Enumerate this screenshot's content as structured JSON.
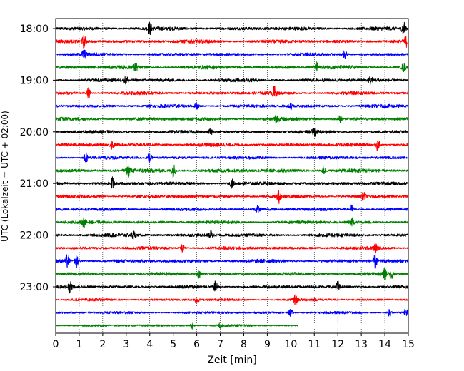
{
  "chart_data": {
    "type": "line",
    "title": "",
    "xlabel": "Zeit  [min]",
    "ylabel": "UTC (Lokalzeit = UTC + 02:00)",
    "xlim": [
      0,
      15
    ],
    "x_ticks": [
      "0",
      "1",
      "2",
      "3",
      "4",
      "5",
      "6",
      "7",
      "8",
      "9",
      "10",
      "11",
      "12",
      "13",
      "14",
      "15"
    ],
    "y_ticks": [
      "18:00",
      "19:00",
      "20:00",
      "21:00",
      "22:00",
      "23:00"
    ],
    "y_tick_values": [
      0,
      4,
      8,
      12,
      16,
      20
    ],
    "grid": "vertical dotted",
    "legend": "none",
    "trace_colors": [
      "#000000",
      "#ff0000",
      "#0000ff",
      "#008000"
    ],
    "series": [
      {
        "start": "18:00",
        "duration_min": 15,
        "color": "#000000",
        "amplitude": 0.22,
        "events": [
          [
            4.0,
            0.9
          ],
          [
            14.8,
            1.1
          ]
        ]
      },
      {
        "start": "18:15",
        "duration_min": 15,
        "color": "#ff0000",
        "amplitude": 0.22,
        "events": [
          [
            1.2,
            0.9
          ],
          [
            14.9,
            0.7
          ]
        ]
      },
      {
        "start": "18:30",
        "duration_min": 15,
        "color": "#0000ff",
        "amplitude": 0.2,
        "events": [
          [
            1.2,
            0.7
          ],
          [
            12.3,
            0.6
          ]
        ]
      },
      {
        "start": "18:45",
        "duration_min": 15,
        "color": "#008000",
        "amplitude": 0.24,
        "events": [
          [
            3.4,
            0.6
          ],
          [
            11.1,
            0.7
          ],
          [
            14.8,
            0.6
          ]
        ]
      },
      {
        "start": "19:00",
        "duration_min": 15,
        "color": "#000000",
        "amplitude": 0.22,
        "events": [
          [
            3.0,
            0.6
          ],
          [
            13.4,
            0.6
          ]
        ]
      },
      {
        "start": "19:15",
        "duration_min": 15,
        "color": "#ff0000",
        "amplitude": 0.2,
        "events": [
          [
            1.4,
            0.8
          ],
          [
            9.3,
            1.0
          ]
        ]
      },
      {
        "start": "19:30",
        "duration_min": 15,
        "color": "#0000ff",
        "amplitude": 0.2,
        "events": [
          [
            6.0,
            0.5
          ],
          [
            10.0,
            0.6
          ]
        ]
      },
      {
        "start": "19:45",
        "duration_min": 15,
        "color": "#008000",
        "amplitude": 0.22,
        "events": [
          [
            9.4,
            0.8
          ],
          [
            12.1,
            0.5
          ]
        ]
      },
      {
        "start": "20:00",
        "duration_min": 15,
        "color": "#000000",
        "amplitude": 0.22,
        "events": [
          [
            6.6,
            0.6
          ],
          [
            11.0,
            0.5
          ]
        ]
      },
      {
        "start": "20:15",
        "duration_min": 15,
        "color": "#ff0000",
        "amplitude": 0.22,
        "events": [
          [
            2.4,
            0.6
          ],
          [
            13.7,
            0.9
          ]
        ]
      },
      {
        "start": "20:30",
        "duration_min": 15,
        "color": "#0000ff",
        "amplitude": 0.2,
        "events": [
          [
            1.3,
            1.0
          ],
          [
            4.0,
            0.6
          ]
        ]
      },
      {
        "start": "20:45",
        "duration_min": 15,
        "color": "#008000",
        "amplitude": 0.24,
        "events": [
          [
            3.1,
            0.8
          ],
          [
            5.0,
            1.1
          ],
          [
            11.4,
            0.6
          ]
        ]
      },
      {
        "start": "21:00",
        "duration_min": 15,
        "color": "#000000",
        "amplitude": 0.22,
        "events": [
          [
            2.4,
            0.9
          ],
          [
            7.5,
            0.6
          ]
        ]
      },
      {
        "start": "21:15",
        "duration_min": 15,
        "color": "#ff0000",
        "amplitude": 0.2,
        "events": [
          [
            9.5,
            0.9
          ],
          [
            13.1,
            0.6
          ]
        ]
      },
      {
        "start": "21:30",
        "duration_min": 15,
        "color": "#0000ff",
        "amplitude": 0.2,
        "events": [
          [
            8.6,
            0.6
          ],
          [
            12.6,
            0.7
          ]
        ]
      },
      {
        "start": "21:45",
        "duration_min": 15,
        "color": "#008000",
        "amplitude": 0.2,
        "events": [
          [
            1.2,
            0.6
          ],
          [
            12.6,
            0.6
          ]
        ]
      },
      {
        "start": "22:00",
        "duration_min": 15,
        "color": "#000000",
        "amplitude": 0.22,
        "events": [
          [
            3.3,
            0.6
          ],
          [
            6.6,
            0.6
          ]
        ]
      },
      {
        "start": "22:15",
        "duration_min": 15,
        "color": "#ff0000",
        "amplitude": 0.2,
        "events": [
          [
            5.4,
            0.6
          ],
          [
            13.6,
            0.6
          ]
        ]
      },
      {
        "start": "22:30",
        "duration_min": 15,
        "color": "#0000ff",
        "amplitude": 0.22,
        "events": [
          [
            0.5,
            1.0
          ],
          [
            0.9,
            1.0
          ],
          [
            13.6,
            1.1
          ]
        ]
      },
      {
        "start": "22:45",
        "duration_min": 15,
        "color": "#008000",
        "amplitude": 0.2,
        "events": [
          [
            6.1,
            0.6
          ],
          [
            14.0,
            0.8
          ],
          [
            14.3,
            0.6
          ]
        ]
      },
      {
        "start": "23:00",
        "duration_min": 15,
        "color": "#000000",
        "amplitude": 0.2,
        "events": [
          [
            0.6,
            0.8
          ],
          [
            6.8,
            0.8
          ],
          [
            12.0,
            0.8
          ]
        ]
      },
      {
        "start": "23:15",
        "duration_min": 15,
        "color": "#ff0000",
        "amplitude": 0.16,
        "events": [
          [
            6.0,
            0.6
          ],
          [
            10.2,
            0.8
          ]
        ]
      },
      {
        "start": "23:30",
        "duration_min": 15,
        "color": "#0000ff",
        "amplitude": 0.16,
        "events": [
          [
            10.0,
            0.6
          ],
          [
            14.2,
            0.6
          ],
          [
            14.9,
            0.6
          ]
        ]
      },
      {
        "start": "23:45",
        "duration_min": 10.3,
        "color": "#008000",
        "amplitude": 0.14,
        "events": [
          [
            5.8,
            0.5
          ],
          [
            7.0,
            0.4
          ]
        ]
      }
    ]
  }
}
